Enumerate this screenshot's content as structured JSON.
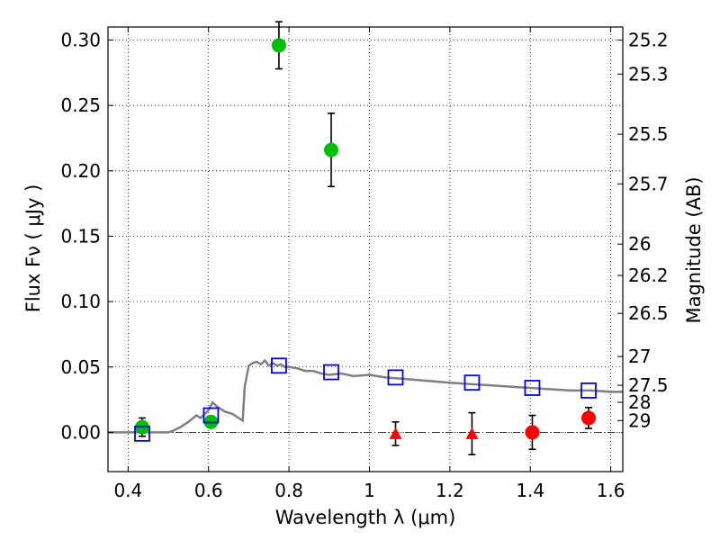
{
  "chart_data": {
    "type": "scatter",
    "xlabel": "Wavelength  λ (μm)",
    "ylabel": "Flux  Fν  ( μJy )",
    "y2label": "Magnitude (AB)",
    "xlim": [
      0.35,
      1.63
    ],
    "ylim": [
      -0.03,
      0.31
    ],
    "x_ticks": [
      0.4,
      0.6,
      0.8,
      1.0,
      1.2,
      1.4,
      1.6
    ],
    "x_tick_labels": [
      "0.4",
      "0.6",
      "0.8",
      "1",
      "1.2",
      "1.4",
      "1.6"
    ],
    "y_ticks": [
      0.0,
      0.05,
      0.1,
      0.15,
      0.2,
      0.25,
      0.3
    ],
    "y_tick_labels": [
      "0.00",
      "0.05",
      "0.10",
      "0.15",
      "0.20",
      "0.25",
      "0.30"
    ],
    "y2_ticks": [
      {
        "label": "25.2",
        "flux": 0.3
      },
      {
        "label": "25.3",
        "flux": 0.274
      },
      {
        "label": "25.5",
        "flux": 0.228
      },
      {
        "label": "25.7",
        "flux": 0.19
      },
      {
        "label": "26",
        "flux": 0.144
      },
      {
        "label": "26.2",
        "flux": 0.12
      },
      {
        "label": "26.5",
        "flux": 0.091
      },
      {
        "label": "27",
        "flux": 0.058
      },
      {
        "label": "27.5",
        "flux": 0.036
      },
      {
        "label": "28",
        "flux": 0.023
      },
      {
        "label": "29",
        "flux": 0.009
      }
    ],
    "grid": true,
    "series": [
      {
        "marker": "circle",
        "color": "#00bf00",
        "points": [
          {
            "x": 0.435,
            "y": 0.004,
            "yerr": 0.007
          },
          {
            "x": 0.606,
            "y": 0.008,
            "yerr": 0.004
          },
          {
            "x": 0.775,
            "y": 0.296,
            "yerr": 0.018
          },
          {
            "x": 0.905,
            "y": 0.216,
            "yerr": 0.028
          }
        ]
      },
      {
        "marker": "triangle",
        "color": "#ff0000",
        "points": [
          {
            "x": 1.065,
            "y": -0.001,
            "yerr": 0.009
          },
          {
            "x": 1.255,
            "y": -0.001,
            "yerr": 0.016
          }
        ]
      },
      {
        "marker": "circle",
        "color": "#ff0000",
        "points": [
          {
            "x": 1.405,
            "y": 0.0,
            "yerr": 0.013
          },
          {
            "x": 1.545,
            "y": 0.011,
            "yerr": 0.008
          }
        ]
      },
      {
        "marker": "square-open",
        "color": "#0000ff",
        "points": [
          {
            "x": 0.435,
            "y": -0.001
          },
          {
            "x": 0.606,
            "y": 0.013
          },
          {
            "x": 0.775,
            "y": 0.051
          },
          {
            "x": 0.905,
            "y": 0.046
          },
          {
            "x": 1.065,
            "y": 0.042
          },
          {
            "x": 1.255,
            "y": 0.038
          },
          {
            "x": 1.405,
            "y": 0.034
          },
          {
            "x": 1.545,
            "y": 0.032
          }
        ]
      },
      {
        "type": "line",
        "color": "#7f7f7f",
        "x": [
          0.35,
          0.4,
          0.45,
          0.5,
          0.51,
          0.53,
          0.55,
          0.57,
          0.58,
          0.59,
          0.6,
          0.61,
          0.62,
          0.63,
          0.64,
          0.65,
          0.66,
          0.67,
          0.68,
          0.685,
          0.69,
          0.7,
          0.71,
          0.72,
          0.73,
          0.74,
          0.75,
          0.76,
          0.77,
          0.78,
          0.79,
          0.8,
          0.82,
          0.84,
          0.86,
          0.88,
          0.9,
          0.93,
          0.96,
          1.0,
          1.04,
          1.08,
          1.12,
          1.16,
          1.2,
          1.25,
          1.3,
          1.35,
          1.4,
          1.45,
          1.5,
          1.55,
          1.6,
          1.63
        ],
        "y": [
          0.0,
          0.0,
          0.0,
          0.0,
          0.001,
          0.004,
          0.008,
          0.013,
          0.011,
          0.014,
          0.017,
          0.023,
          0.02,
          0.018,
          0.016,
          0.015,
          0.014,
          0.012,
          0.01,
          0.009,
          0.035,
          0.051,
          0.053,
          0.054,
          0.052,
          0.055,
          0.051,
          0.053,
          0.051,
          0.052,
          0.05,
          0.05,
          0.049,
          0.047,
          0.047,
          0.045,
          0.044,
          0.045,
          0.043,
          0.044,
          0.042,
          0.041,
          0.04,
          0.039,
          0.038,
          0.037,
          0.036,
          0.035,
          0.034,
          0.033,
          0.032,
          0.032,
          0.031,
          0.031
        ]
      }
    ]
  }
}
